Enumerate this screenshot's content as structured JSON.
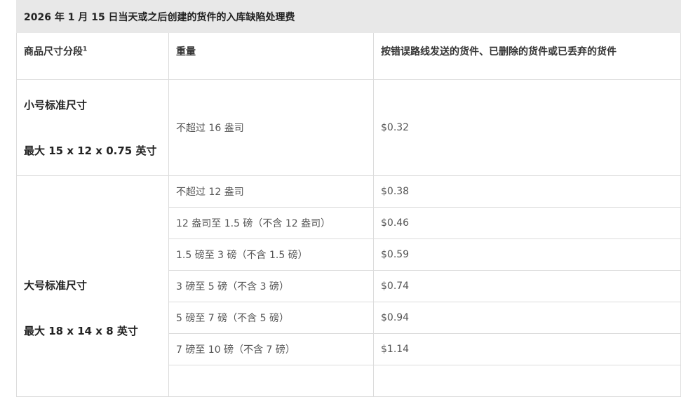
{
  "title": "2026 年 1 月 15 日当天或之后创建的货件的入库缺陷处理费",
  "headers": {
    "size_tier": "商品尺寸分段",
    "size_tier_sup": "1",
    "weight": "重量",
    "fee": "按错误路线发送的货件、已删除的货件或已丢弃的货件"
  },
  "small": {
    "name": "小号标准尺寸",
    "max": "最大 15 x 12 x 0.75 英寸",
    "rows": [
      {
        "weight": "不超过 16 盎司",
        "fee": "$0.32"
      }
    ]
  },
  "large": {
    "name": "大号标准尺寸",
    "max": "最大 18 x 14 x 8 英寸",
    "rows": [
      {
        "weight": "不超过 12 盎司",
        "fee": "$0.38"
      },
      {
        "weight": "12 盎司至 1.5 磅（不含 12 盎司）",
        "fee": "$0.46"
      },
      {
        "weight": "1.5 磅至 3 磅（不含 1.5 磅）",
        "fee": "$0.59"
      },
      {
        "weight": "3 磅至 5 磅（不含 3 磅）",
        "fee": "$0.74"
      },
      {
        "weight": "5 磅至 7 磅（不含 5 磅）",
        "fee": "$0.94"
      },
      {
        "weight": "7 磅至 10 磅（不含 7 磅）",
        "fee": "$1.14"
      }
    ]
  }
}
